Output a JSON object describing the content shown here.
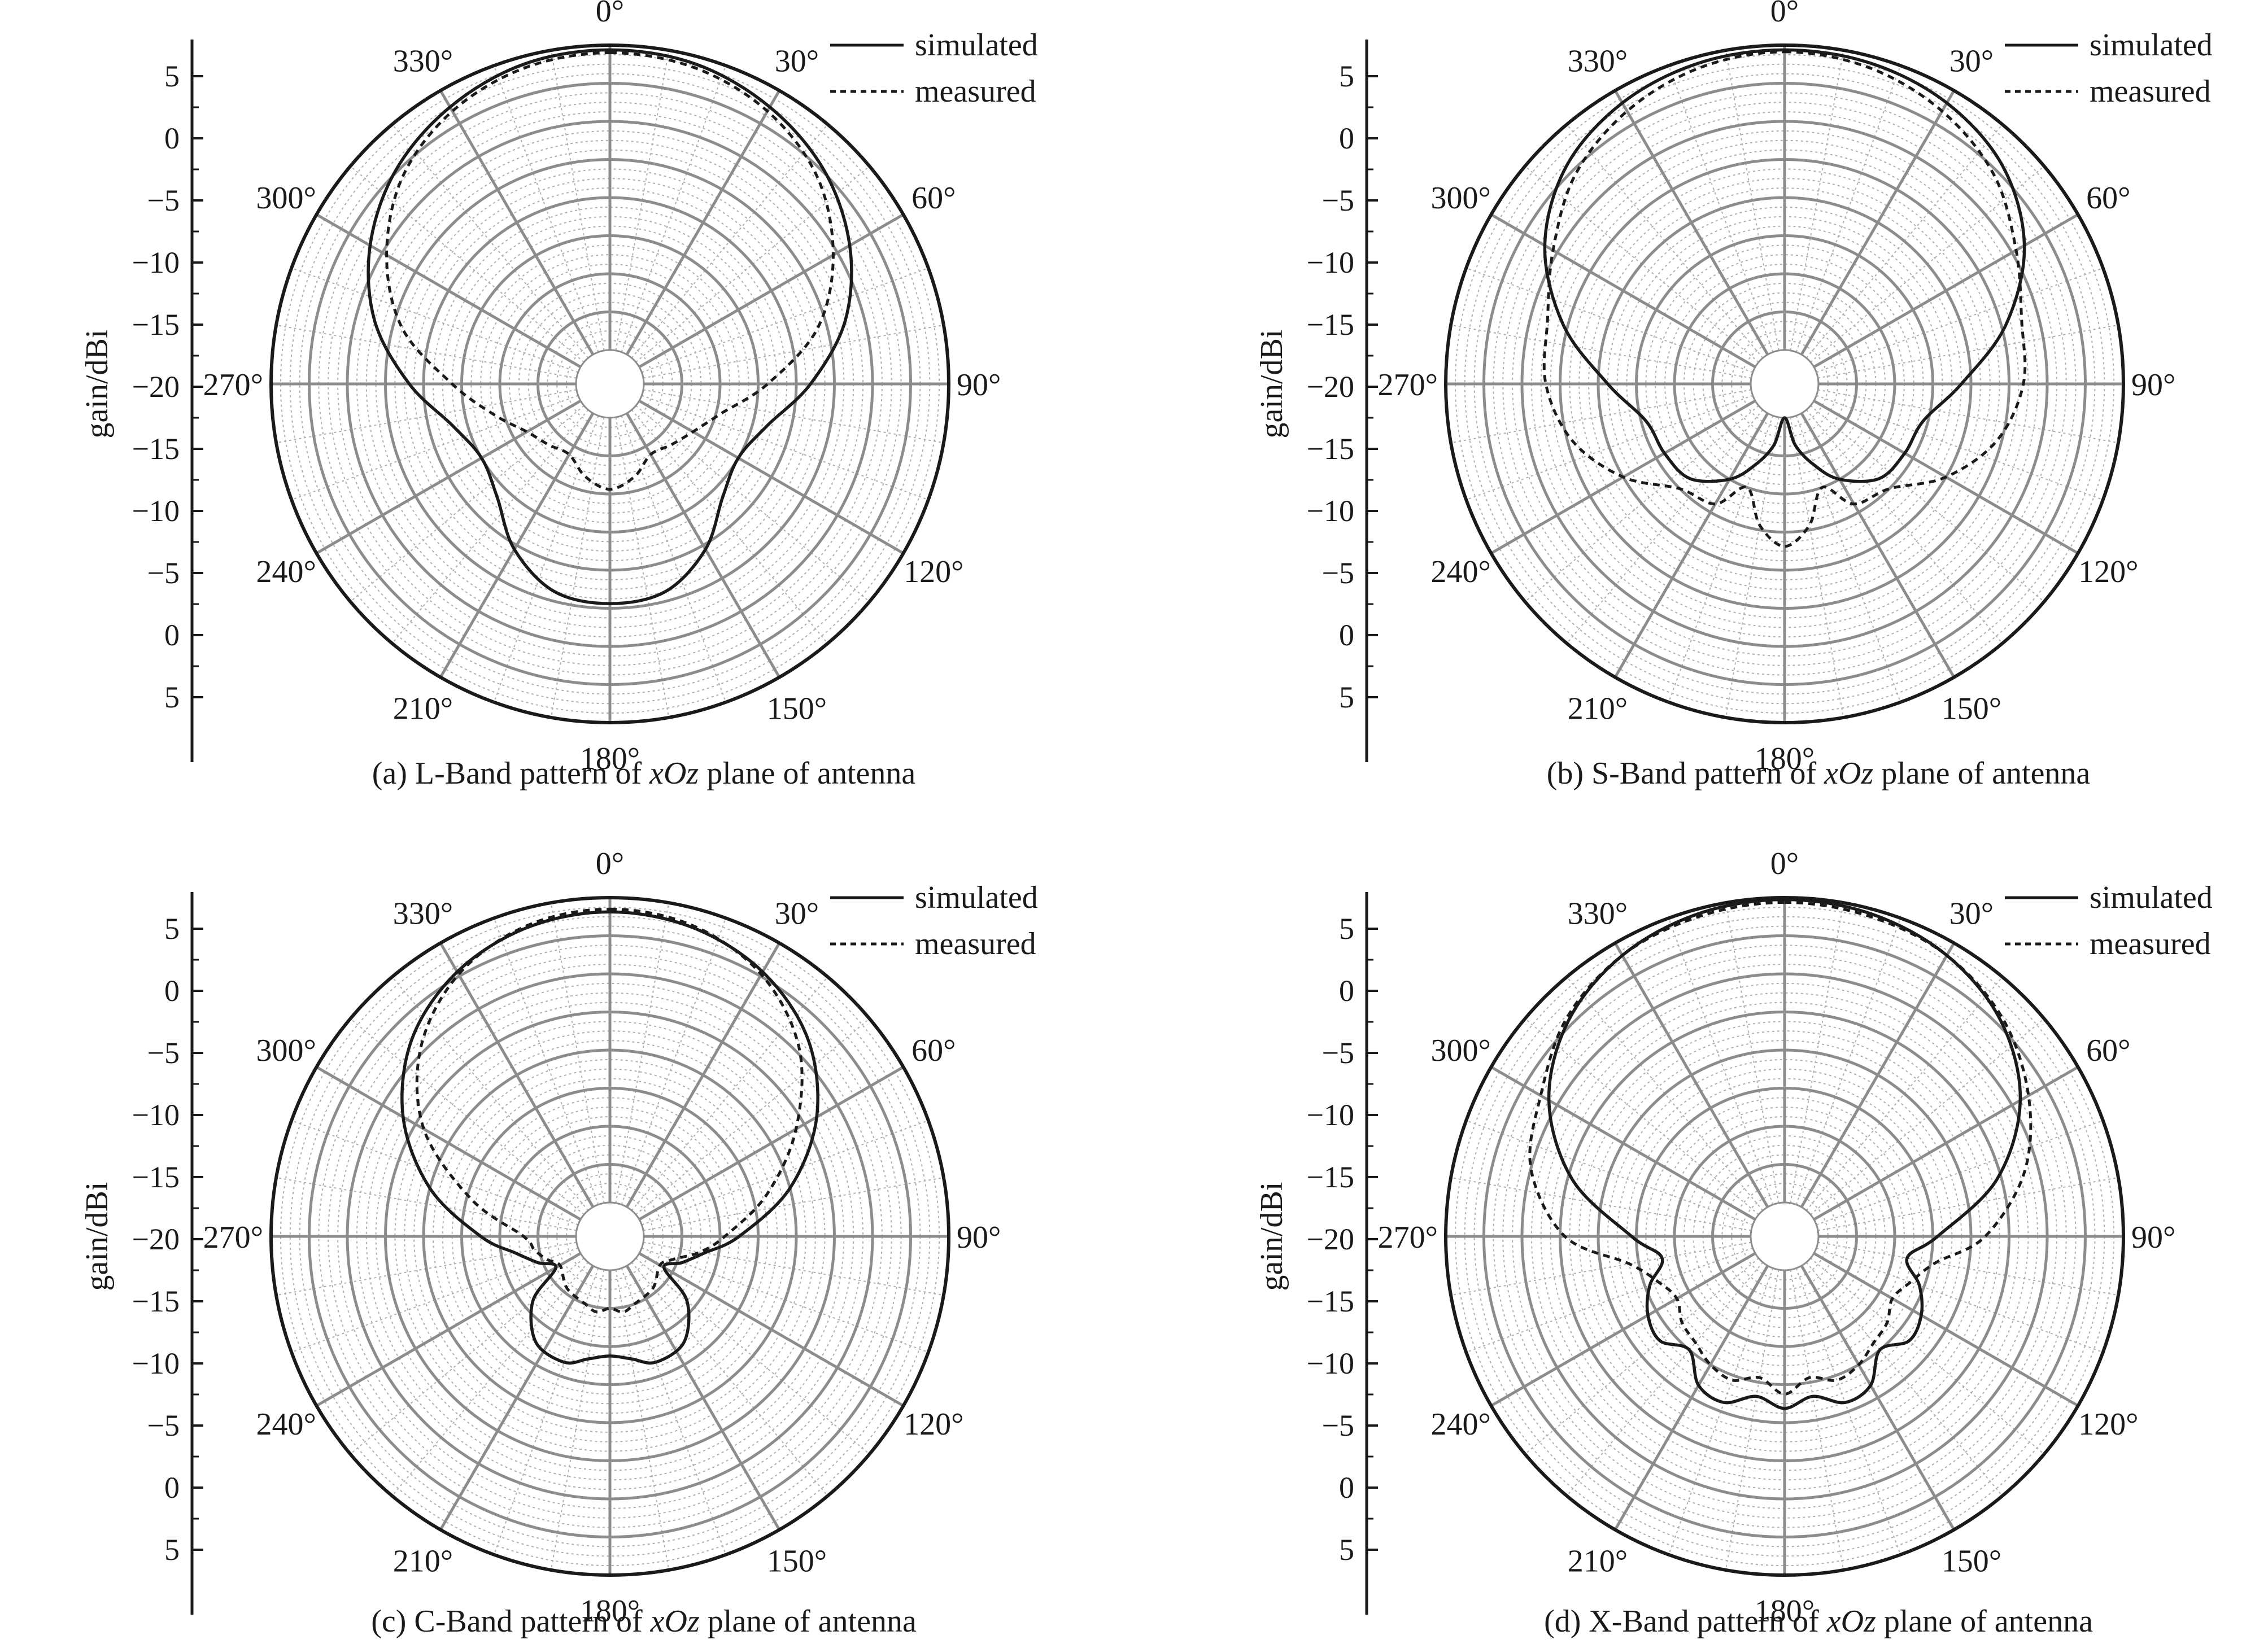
{
  "figure": {
    "colors": {
      "grid_major": "#8c8c8c",
      "grid_minor": "#b0b0b0",
      "axis": "#1a1a1a",
      "trace": "#1a1a1a"
    }
  },
  "chart_data": [
    {
      "type": "polar-line",
      "caption": {
        "prefix": "(a) L-Band pattern of ",
        "italic": "xOz",
        "suffix": " plane of antenna"
      },
      "ylabel": "gain/dBi",
      "r_ticks": [
        "5",
        "0",
        "−5",
        "−10",
        "−15",
        "−20",
        "−15",
        "−10",
        "−5",
        "0",
        "5"
      ],
      "angle_labels": [
        "0°",
        "30°",
        "60°",
        "90°",
        "120°",
        "150°",
        "180°",
        "210°",
        "240°",
        "270°",
        "300°",
        "330°"
      ],
      "rlim": [
        -25,
        7
      ],
      "angle_unit": "deg",
      "direction": "clockwise",
      "zero_at": "top",
      "legend": {
        "position": "top-right"
      },
      "series": [
        {
          "name": "simulated",
          "style": "solid",
          "angles": [
            0,
            15,
            30,
            45,
            60,
            75,
            90,
            105,
            120,
            135,
            150,
            165,
            180,
            195,
            210,
            225,
            240,
            255,
            270,
            285,
            300,
            315,
            330,
            345
          ],
          "values": [
            6.5,
            6.2,
            5.0,
            3.2,
            0.5,
            -3.0,
            -7.5,
            -11.5,
            -13.0,
            -11.8,
            -8.5,
            -6.0,
            -5.5,
            -6.0,
            -8.5,
            -11.8,
            -13.0,
            -11.5,
            -7.5,
            -3.0,
            0.5,
            3.2,
            5.0,
            6.2
          ]
        },
        {
          "name": "measured",
          "style": "dashed",
          "angles": [
            0,
            15,
            30,
            45,
            60,
            75,
            90,
            105,
            120,
            135,
            150,
            165,
            180,
            195,
            210,
            225,
            240,
            255,
            270,
            285,
            300,
            315,
            330,
            345
          ],
          "values": [
            6.2,
            5.8,
            4.5,
            2.2,
            -1.5,
            -6.0,
            -12.0,
            -16.5,
            -18.5,
            -19.5,
            -20.0,
            -18.5,
            -17.5,
            -18.5,
            -20.0,
            -19.5,
            -18.5,
            -16.0,
            -12.0,
            -6.0,
            -1.5,
            2.2,
            4.5,
            5.8
          ]
        }
      ]
    },
    {
      "type": "polar-line",
      "caption": {
        "prefix": "(b) S-Band pattern of ",
        "italic": "xOz",
        "suffix": " plane of antenna"
      },
      "ylabel": "gain/dBi",
      "r_ticks": [
        "5",
        "0",
        "−5",
        "−10",
        "−15",
        "−20",
        "−15",
        "−10",
        "−5",
        "0",
        "5"
      ],
      "angle_labels": [
        "0°",
        "30°",
        "60°",
        "90°",
        "120°",
        "150°",
        "180°",
        "210°",
        "240°",
        "270°",
        "300°",
        "330°"
      ],
      "rlim": [
        -25,
        7
      ],
      "angle_unit": "deg",
      "direction": "clockwise",
      "zero_at": "top",
      "legend": {
        "position": "top-right"
      },
      "series": [
        {
          "name": "simulated",
          "style": "solid",
          "angles": [
            0,
            15,
            30,
            45,
            60,
            75,
            90,
            105,
            120,
            135,
            150,
            160,
            170,
            180,
            190,
            200,
            210,
            225,
            240,
            255,
            270,
            285,
            300,
            315,
            330,
            345
          ],
          "values": [
            6.5,
            6.3,
            5.5,
            3.8,
            0.5,
            -4.5,
            -10.0,
            -13.5,
            -14.0,
            -14.5,
            -17.0,
            -19.5,
            -22.0,
            -25.0,
            -22.0,
            -19.5,
            -17.0,
            -14.5,
            -14.0,
            -13.5,
            -10.0,
            -4.5,
            0.5,
            3.8,
            5.5,
            6.3
          ]
        },
        {
          "name": "measured",
          "style": "dashed",
          "angles": [
            0,
            15,
            30,
            45,
            60,
            75,
            90,
            105,
            120,
            135,
            150,
            160,
            170,
            180,
            190,
            200,
            210,
            225,
            240,
            255,
            270,
            285,
            300,
            315,
            330,
            345
          ],
          "values": [
            6.3,
            5.8,
            4.5,
            2.5,
            -0.5,
            -2.8,
            -3.5,
            -5.5,
            -9.0,
            -13.0,
            -14.0,
            -17.0,
            -13.5,
            -11.5,
            -13.5,
            -17.0,
            -14.0,
            -13.0,
            -9.0,
            -5.5,
            -3.5,
            -2.8,
            -0.5,
            2.5,
            4.5,
            5.8
          ]
        }
      ]
    },
    {
      "type": "polar-line",
      "caption": {
        "prefix": "(c) C-Band pattern of ",
        "italic": "xOz",
        "suffix": " plane of antenna"
      },
      "ylabel": "gain/dBi",
      "r_ticks": [
        "5",
        "0",
        "−5",
        "−10",
        "−15",
        "−20",
        "−15",
        "−10",
        "−5",
        "0",
        "5"
      ],
      "angle_labels": [
        "0°",
        "30°",
        "60°",
        "90°",
        "120°",
        "150°",
        "180°",
        "210°",
        "240°",
        "270°",
        "300°",
        "330°"
      ],
      "rlim": [
        -25,
        7
      ],
      "angle_unit": "deg",
      "direction": "clockwise",
      "zero_at": "top",
      "legend": {
        "position": "top-right"
      },
      "series": [
        {
          "name": "simulated",
          "style": "solid",
          "angles": [
            0,
            15,
            30,
            45,
            60,
            75,
            90,
            100,
            110,
            120,
            130,
            145,
            160,
            170,
            180,
            190,
            200,
            215,
            230,
            240,
            250,
            260,
            270,
            285,
            300,
            315,
            330,
            345
          ],
          "values": [
            5.5,
            5.0,
            3.5,
            0.8,
            -3.5,
            -9.0,
            -15.0,
            -18.5,
            -20.5,
            -22.0,
            -18.0,
            -15.0,
            -14.5,
            -15.5,
            -16.0,
            -15.5,
            -14.5,
            -15.0,
            -18.0,
            -22.0,
            -20.5,
            -18.5,
            -15.0,
            -9.0,
            -3.5,
            0.8,
            3.5,
            5.0
          ]
        },
        {
          "name": "measured",
          "style": "dashed",
          "angles": [
            0,
            15,
            30,
            45,
            60,
            75,
            90,
            100,
            110,
            120,
            140,
            160,
            170,
            180,
            190,
            200,
            220,
            240,
            250,
            260,
            270,
            285,
            300,
            315,
            330,
            345
          ],
          "values": [
            5.8,
            5.2,
            3.2,
            -0.5,
            -6.0,
            -11.5,
            -16.5,
            -19.0,
            -21.5,
            -22.5,
            -21.5,
            -21.0,
            -20.5,
            -21.0,
            -20.5,
            -21.0,
            -21.5,
            -22.5,
            -21.5,
            -20.5,
            -19.5,
            -13.5,
            -6.0,
            -0.5,
            3.2,
            5.2
          ]
        }
      ]
    },
    {
      "type": "polar-line",
      "caption": {
        "prefix": "(d) X-Band pattern of ",
        "italic": "xOz",
        "suffix": " plane of antenna"
      },
      "ylabel": "gain/dBi",
      "r_ticks": [
        "5",
        "0",
        "−5",
        "−10",
        "−15",
        "−20",
        "−15",
        "−10",
        "−5",
        "0",
        "5"
      ],
      "angle_labels": [
        "0°",
        "30°",
        "60°",
        "90°",
        "120°",
        "150°",
        "180°",
        "210°",
        "240°",
        "270°",
        "300°",
        "330°"
      ],
      "rlim": [
        -25,
        7
      ],
      "angle_unit": "deg",
      "direction": "clockwise",
      "zero_at": "top",
      "legend": {
        "position": "top-right"
      },
      "series": [
        {
          "name": "simulated",
          "style": "solid",
          "angles": [
            0,
            15,
            30,
            45,
            60,
            75,
            90,
            100,
            110,
            120,
            130,
            140,
            150,
            160,
            170,
            180,
            190,
            200,
            210,
            220,
            230,
            240,
            250,
            260,
            270,
            285,
            300,
            315,
            330,
            345
          ],
          "values": [
            6.8,
            6.5,
            5.5,
            3.5,
            0.0,
            -5.5,
            -12.5,
            -15.5,
            -13.5,
            -12.0,
            -11.5,
            -13.0,
            -10.5,
            -10.0,
            -11.5,
            -10.5,
            -11.5,
            -10.0,
            -10.5,
            -13.0,
            -11.5,
            -12.0,
            -13.5,
            -15.5,
            -12.5,
            -5.5,
            0.0,
            3.5,
            5.5,
            6.5
          ]
        },
        {
          "name": "measured",
          "style": "dashed",
          "angles": [
            0,
            15,
            30,
            45,
            60,
            75,
            90,
            100,
            110,
            120,
            130,
            140,
            150,
            160,
            170,
            180,
            190,
            200,
            210,
            220,
            230,
            240,
            250,
            260,
            270,
            285,
            300,
            315,
            330,
            345
          ],
          "values": [
            6.5,
            6.2,
            5.5,
            3.8,
            1.0,
            -2.5,
            -7.5,
            -12.5,
            -14.5,
            -15.5,
            -14.5,
            -14.0,
            -13.0,
            -12.5,
            -13.5,
            -12.0,
            -13.5,
            -12.5,
            -13.0,
            -14.0,
            -14.5,
            -15.5,
            -14.5,
            -12.0,
            -5.5,
            -1.0,
            1.0,
            3.8,
            5.5,
            6.2
          ]
        }
      ]
    }
  ]
}
